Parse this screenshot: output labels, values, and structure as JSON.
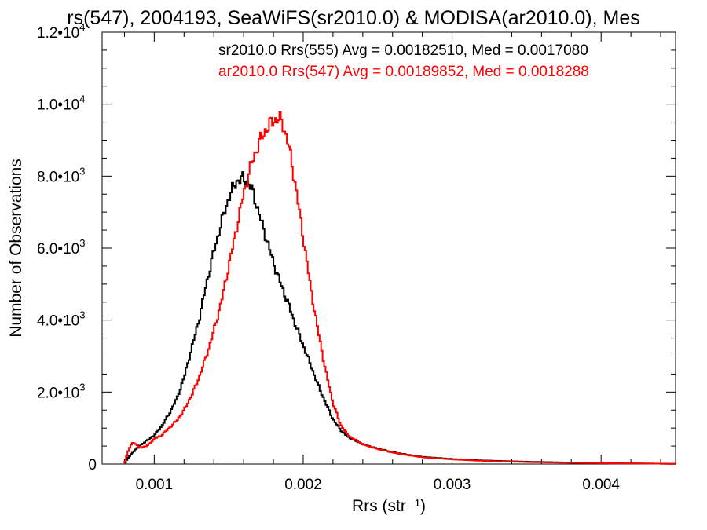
{
  "chart_data": {
    "type": "line",
    "title": "rs(547), 2004193, SeaWiFS(sr2010.0) & MODISA(ar2010.0), Mes",
    "xlabel": "Rrs (str⁻¹)",
    "ylabel": "Number of Observations",
    "xlim": [
      0.00065,
      0.0045
    ],
    "ylim": [
      0,
      12000
    ],
    "grid": false,
    "x_ticks": [
      0.001,
      0.002,
      0.003,
      0.004
    ],
    "x_tick_labels": [
      "0.001",
      "0.002",
      "0.003",
      "0.004"
    ],
    "y_ticks": [
      {
        "value": 0,
        "mantissa": "0",
        "exponent": ""
      },
      {
        "value": 2000,
        "mantissa": "2.0•10",
        "exponent": "3"
      },
      {
        "value": 4000,
        "mantissa": "4.0•10",
        "exponent": "3"
      },
      {
        "value": 6000,
        "mantissa": "6.0•10",
        "exponent": "3"
      },
      {
        "value": 8000,
        "mantissa": "8.0•10",
        "exponent": "3"
      },
      {
        "value": 10000,
        "mantissa": "1.0•10",
        "exponent": "4"
      },
      {
        "value": 12000,
        "mantissa": "1.2•10",
        "exponent": "4"
      }
    ],
    "annotations": [
      {
        "text": "sr2010.0 Rrs(555) Avg = 0.00182510, Med = 0.0017080",
        "color": "#000000"
      },
      {
        "text": "ar2010.0 Rrs(547) Avg = 0.00189852, Med = 0.0018288",
        "color": "#ff0000"
      }
    ],
    "series": [
      {
        "color": "#000000",
        "x": [
          0.0008,
          0.00082,
          0.00085,
          0.0009,
          0.00095,
          0.001,
          0.00105,
          0.0011,
          0.00115,
          0.0012,
          0.00125,
          0.0013,
          0.00135,
          0.0014,
          0.00145,
          0.0015,
          0.00155,
          0.0016,
          0.00163,
          0.00166,
          0.0017,
          0.00175,
          0.0018,
          0.00185,
          0.0019,
          0.00195,
          0.002,
          0.00205,
          0.0021,
          0.00215,
          0.0022,
          0.00225,
          0.0023,
          0.0024,
          0.0025,
          0.0026,
          0.0027,
          0.0028,
          0.003,
          0.0032,
          0.0035,
          0.0038,
          0.0041,
          0.0044,
          0.0045
        ],
        "y": [
          0,
          150,
          300,
          500,
          650,
          800,
          1050,
          1400,
          1800,
          2400,
          3200,
          4000,
          5000,
          5900,
          6700,
          7400,
          7850,
          7950,
          7800,
          7600,
          7000,
          6300,
          5600,
          5000,
          4450,
          3850,
          3300,
          2750,
          2200,
          1700,
          1250,
          950,
          750,
          550,
          430,
          330,
          260,
          200,
          140,
          100,
          65,
          40,
          20,
          10,
          5
        ]
      },
      {
        "color": "#ff0000",
        "x": [
          0.0008,
          0.00082,
          0.00085,
          0.00088,
          0.0009,
          0.00095,
          0.001,
          0.00105,
          0.0011,
          0.00115,
          0.0012,
          0.00125,
          0.0013,
          0.00135,
          0.0014,
          0.00145,
          0.0015,
          0.00155,
          0.0016,
          0.00165,
          0.0017,
          0.00175,
          0.0018,
          0.00183,
          0.00186,
          0.0019,
          0.00195,
          0.002,
          0.00205,
          0.0021,
          0.00215,
          0.0022,
          0.00225,
          0.0023,
          0.0024,
          0.0025,
          0.0026,
          0.0027,
          0.0028,
          0.003,
          0.0032,
          0.0035,
          0.0038,
          0.0041,
          0.0044,
          0.0045
        ],
        "y": [
          0,
          300,
          600,
          550,
          450,
          500,
          700,
          800,
          1000,
          1200,
          1500,
          1900,
          2400,
          3000,
          3700,
          4500,
          5500,
          6500,
          7500,
          8300,
          8900,
          9300,
          9550,
          9600,
          9500,
          8900,
          7700,
          6300,
          4900,
          3700,
          2600,
          1700,
          1100,
          800,
          550,
          420,
          320,
          250,
          190,
          130,
          90,
          55,
          35,
          18,
          10,
          5
        ]
      }
    ]
  }
}
